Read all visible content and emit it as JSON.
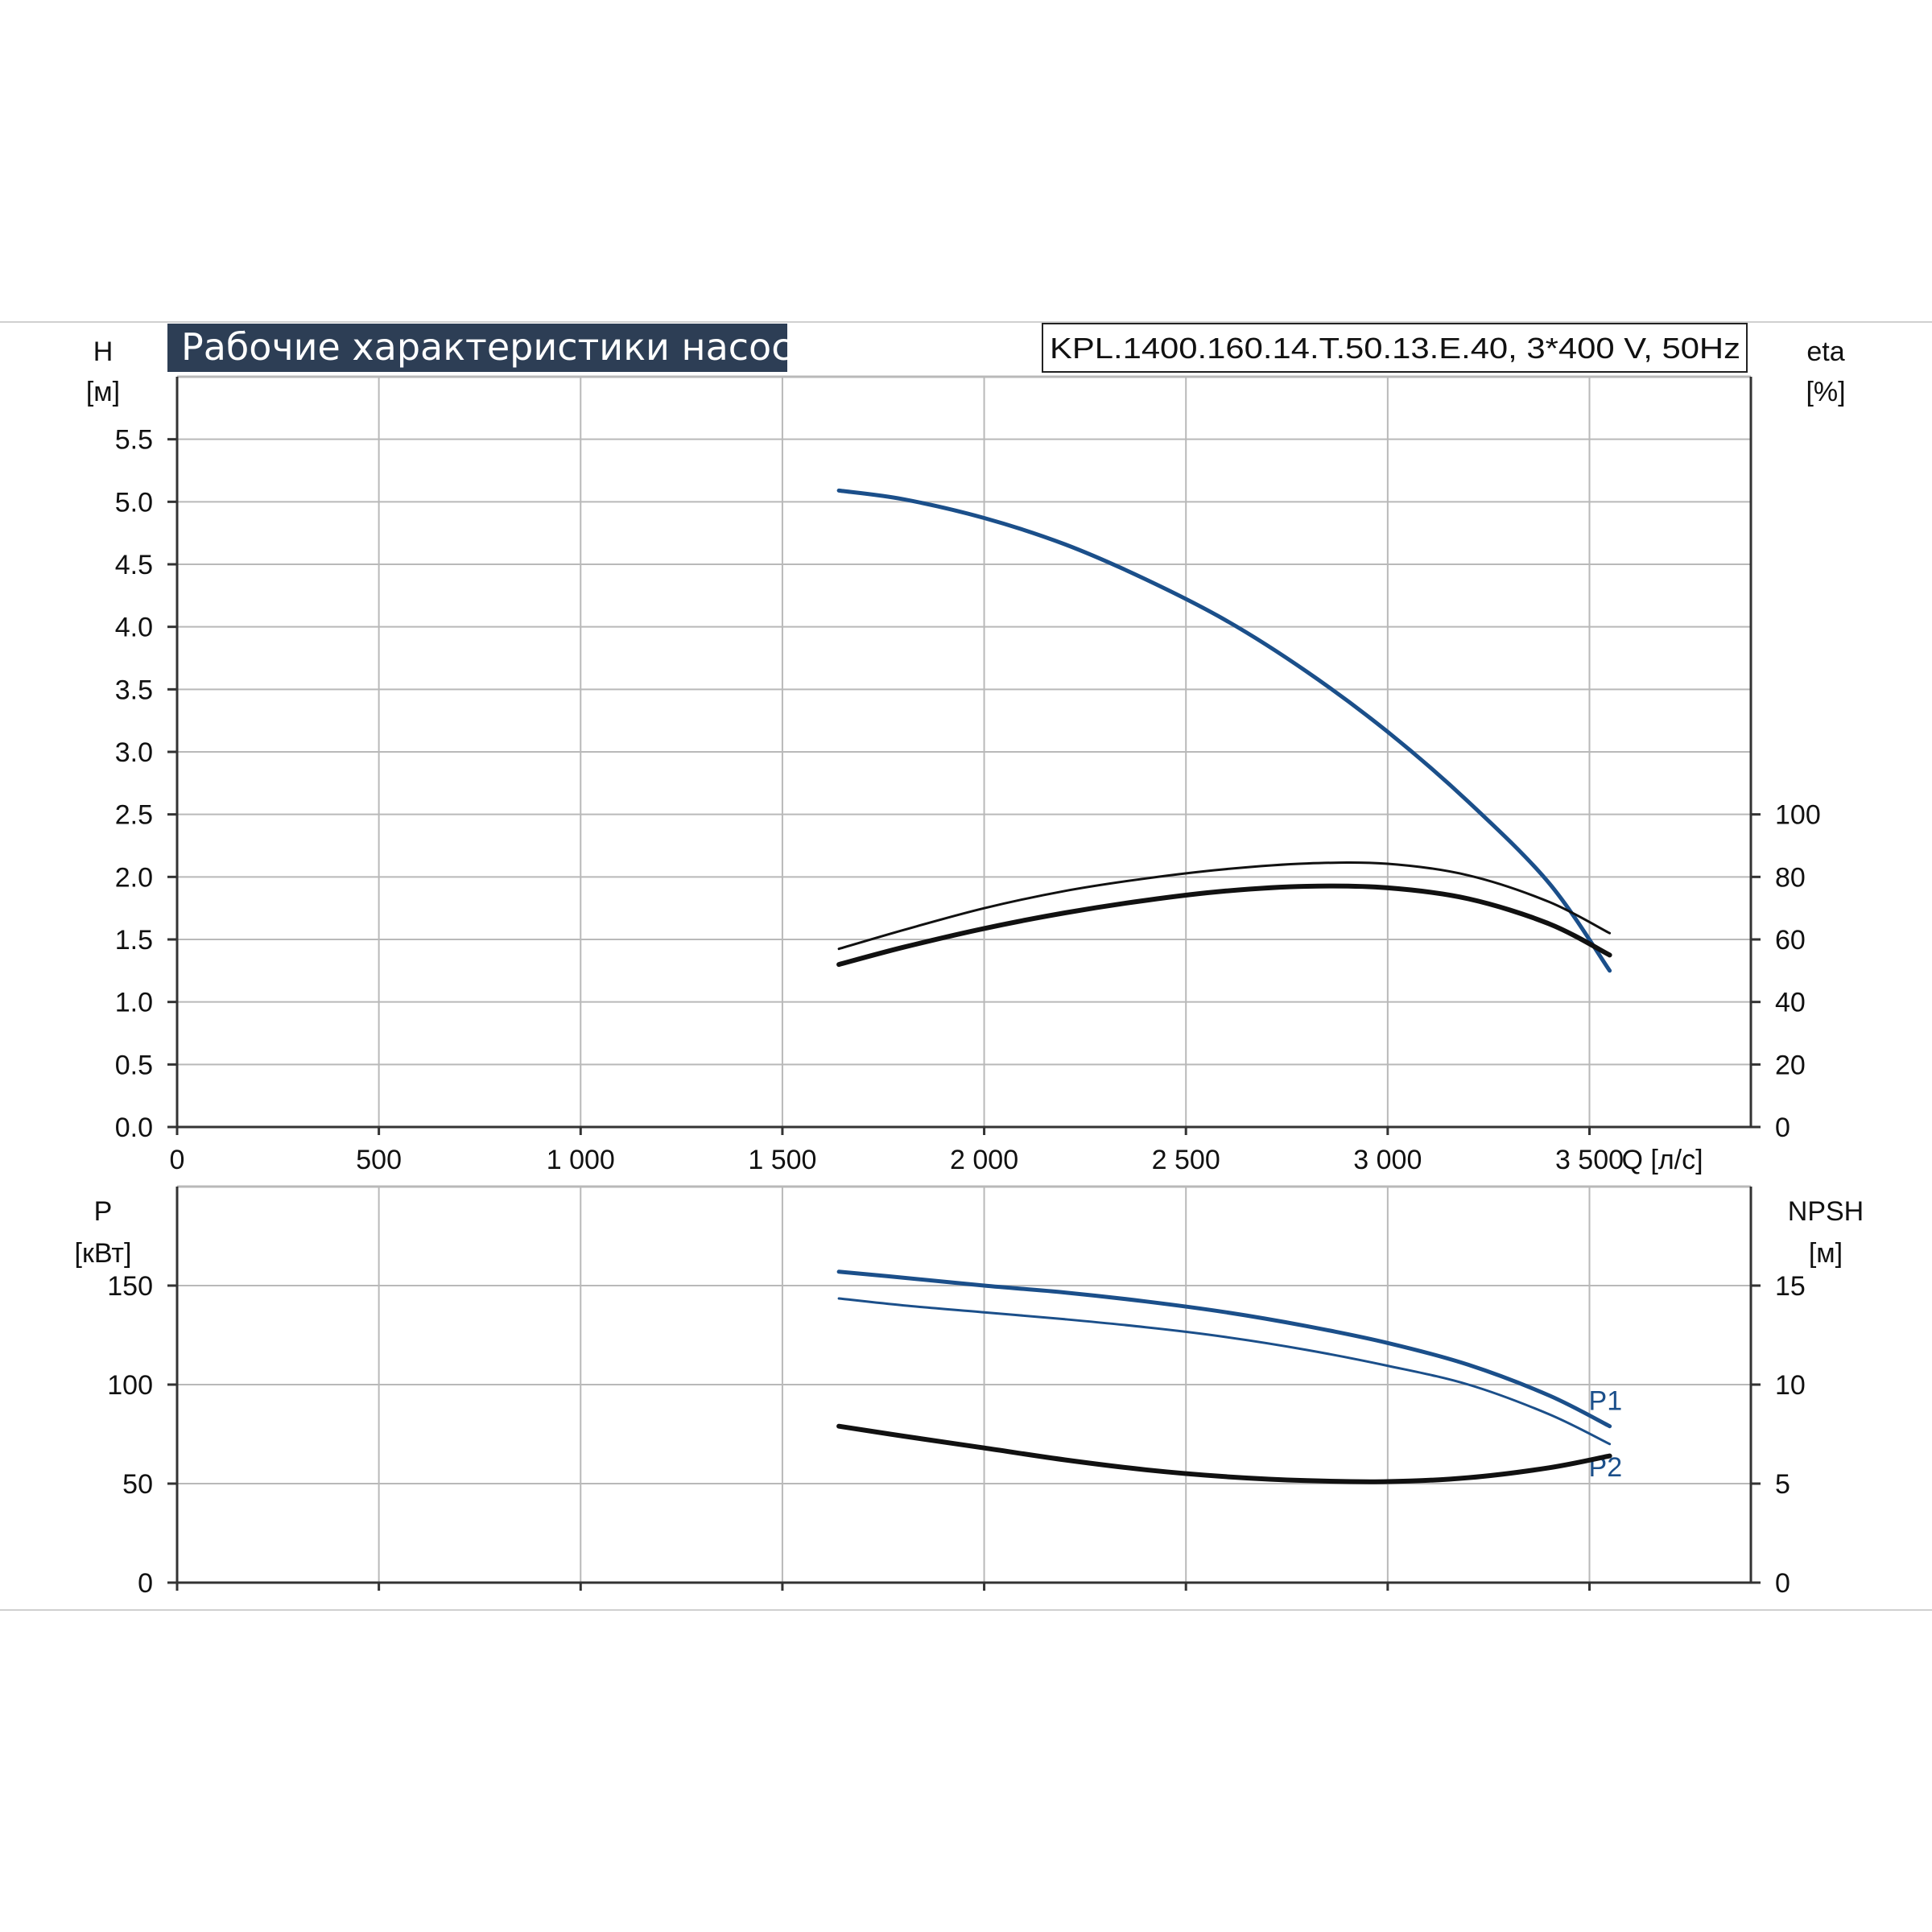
{
  "title": "Рабочие характеристики насоса",
  "model": "KPL.1400.160.14.T.50.13.E.40, 3*400 V, 50Hz",
  "colors": {
    "blue": "#1b4f8a",
    "black": "#111111",
    "grid": "#b9b9b9",
    "title_bg": "#2d3e55"
  },
  "chart_data": [
    {
      "type": "line",
      "name_id": "head-efficiency",
      "y_label_left": "H",
      "y_unit_left": "[м]",
      "y_label_right": "eta",
      "y_unit_right": "[%]",
      "xlabel": "Q [л/с]",
      "xlim": [
        0,
        3900
      ],
      "ylim": [
        0,
        6
      ],
      "ylim_right_scale": [
        0,
        6
      ],
      "x_ticks": [
        0,
        500,
        1000,
        1500,
        2000,
        2500,
        3000,
        3500
      ],
      "x_tick_labels": [
        "0",
        "500",
        "1 000",
        "1 500",
        "2 000",
        "2 500",
        "3 000",
        "3 500"
      ],
      "y_ticks_left": [
        0,
        0.5,
        1.0,
        1.5,
        2.0,
        2.5,
        3.0,
        3.5,
        4.0,
        4.5,
        5.0,
        5.5
      ],
      "y_tick_labels_left": [
        "0.0",
        "0.5",
        "1.0",
        "1.5",
        "2.0",
        "2.5",
        "3.0",
        "3.5",
        "4.0",
        "4.5",
        "5.0",
        "5.5"
      ],
      "y_ticks_right": [
        0,
        20,
        40,
        60,
        80,
        100
      ],
      "y_tick_labels_right": [
        "0",
        "20",
        "40",
        "60",
        "80",
        "100"
      ],
      "grid": true,
      "series": [
        {
          "id": "H",
          "axis": "left",
          "color": "blue",
          "width": 5,
          "x": [
            1640,
            1800,
            2000,
            2200,
            2400,
            2600,
            2800,
            3000,
            3200,
            3400,
            3550
          ],
          "y": [
            5.09,
            5.02,
            4.87,
            4.66,
            4.38,
            4.05,
            3.64,
            3.16,
            2.6,
            1.95,
            1.25
          ]
        },
        {
          "id": "eta-1",
          "axis": "right",
          "color": "black",
          "width": 3,
          "x": [
            1640,
            1800,
            2000,
            2200,
            2400,
            2600,
            2800,
            3000,
            3200,
            3400,
            3550
          ],
          "y": [
            57,
            63,
            70,
            75.5,
            79.5,
            82.5,
            84.3,
            84.2,
            80.5,
            72,
            62
          ]
        },
        {
          "id": "eta-2",
          "axis": "right",
          "color": "black",
          "width": 6,
          "x": [
            1640,
            1800,
            2000,
            2200,
            2400,
            2600,
            2800,
            3000,
            3200,
            3400,
            3550
          ],
          "y": [
            52,
            57.5,
            63.5,
            68.5,
            72.5,
            75.5,
            77,
            76.5,
            73,
            65,
            55
          ]
        }
      ]
    },
    {
      "type": "line",
      "name_id": "power-npsh",
      "y_label_left": "P",
      "y_unit_left": "[кВт]",
      "y_label_right": "NPSH",
      "y_unit_right": "[м]",
      "xlim": [
        0,
        3900
      ],
      "ylim": [
        0,
        200
      ],
      "x_ticks": [
        0,
        500,
        1000,
        1500,
        2000,
        2500,
        3000,
        3500
      ],
      "y_ticks_left": [
        0,
        50,
        100,
        150
      ],
      "y_tick_labels_left": [
        "0",
        "50",
        "100",
        "150"
      ],
      "y_ticks_right": [
        0,
        5,
        10,
        15
      ],
      "y_tick_labels_right": [
        "0",
        "5",
        "10",
        "15"
      ],
      "grid": true,
      "series": [
        {
          "id": "P1",
          "name": "P1",
          "axis": "left",
          "color": "blue",
          "width": 5,
          "x": [
            1640,
            1800,
            2000,
            2200,
            2400,
            2600,
            2800,
            3000,
            3200,
            3400,
            3550
          ],
          "y": [
            157,
            154,
            150,
            146.5,
            142,
            136.5,
            129.5,
            121,
            110,
            94.5,
            79
          ]
        },
        {
          "id": "P2",
          "name": "P2",
          "axis": "left",
          "color": "blue",
          "width": 3,
          "x": [
            1640,
            1800,
            2000,
            2200,
            2400,
            2600,
            2800,
            3000,
            3200,
            3400,
            3550
          ],
          "y": [
            143.5,
            140,
            136.5,
            133,
            129,
            124,
            117.5,
            109.5,
            100,
            85,
            70
          ]
        },
        {
          "id": "NPSH",
          "axis": "right",
          "color": "black",
          "width": 6,
          "x": [
            1640,
            1800,
            2000,
            2200,
            2400,
            2600,
            2800,
            3000,
            3200,
            3400,
            3550
          ],
          "y": [
            7.9,
            7.4,
            6.8,
            6.2,
            5.7,
            5.35,
            5.15,
            5.1,
            5.3,
            5.8,
            6.4
          ]
        }
      ]
    }
  ]
}
